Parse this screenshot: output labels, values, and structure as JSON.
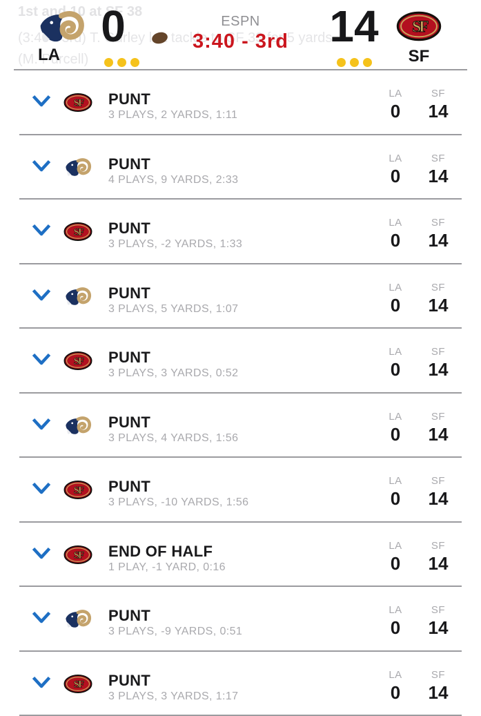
{
  "header": {
    "network": "ESPN",
    "clock": "3:40 - 3rd",
    "away": {
      "abbr": "LA",
      "score": "0",
      "timeouts": 3,
      "has_possession": true
    },
    "home": {
      "abbr": "SF",
      "score": "14",
      "timeouts": 3
    },
    "background_text": {
      "line1": "1st and 10 at SF 38",
      "line2": "(3:40 - 3rd) T. Gurley left tackle to SF 33 for 5 yards",
      "line3": "(M. Purcell)"
    }
  },
  "score_columns": [
    "LA",
    "SF"
  ],
  "drives": [
    {
      "team": "SF",
      "title": "PUNT",
      "detail": "3 PLAYS, 2 YARDS, 1:11",
      "la": "0",
      "sf": "14"
    },
    {
      "team": "LA",
      "title": "PUNT",
      "detail": "4 PLAYS, 9 YARDS, 2:33",
      "la": "0",
      "sf": "14"
    },
    {
      "team": "SF",
      "title": "PUNT",
      "detail": "3 PLAYS, -2 YARDS, 1:33",
      "la": "0",
      "sf": "14"
    },
    {
      "team": "LA",
      "title": "PUNT",
      "detail": "3 PLAYS, 5 YARDS, 1:07",
      "la": "0",
      "sf": "14"
    },
    {
      "team": "SF",
      "title": "PUNT",
      "detail": "3 PLAYS, 3 YARDS, 0:52",
      "la": "0",
      "sf": "14"
    },
    {
      "team": "LA",
      "title": "PUNT",
      "detail": "3 PLAYS, 4 YARDS, 1:56",
      "la": "0",
      "sf": "14"
    },
    {
      "team": "SF",
      "title": "PUNT",
      "detail": "3 PLAYS, -10 YARDS, 1:56",
      "la": "0",
      "sf": "14"
    },
    {
      "team": "SF",
      "title": "END OF HALF",
      "detail": "1 PLAY, -1 YARD, 0:16",
      "la": "0",
      "sf": "14"
    },
    {
      "team": "LA",
      "title": "PUNT",
      "detail": "3 PLAYS, -9 YARDS, 0:51",
      "la": "0",
      "sf": "14"
    },
    {
      "team": "SF",
      "title": "PUNT",
      "detail": "3 PLAYS, 3 YARDS, 1:17",
      "la": "0",
      "sf": "14"
    }
  ],
  "colors": {
    "chevron_blue": "#1e6fc4",
    "clock_red": "#cb161e",
    "timeout_yellow": "#f5c21b",
    "divider_gray": "#9b9b9f",
    "muted_gray": "#a9a9ad",
    "rams_navy": "#1b3160",
    "rams_gold": "#c4a36c",
    "niners_red": "#b3101f",
    "niners_gold": "#c9a45c",
    "football_brown": "#64452a"
  }
}
